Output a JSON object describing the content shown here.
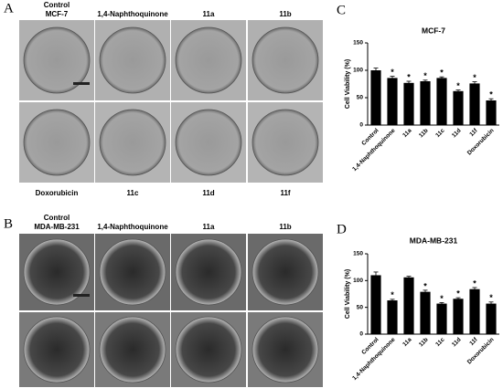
{
  "panels": {
    "A": {
      "letter": "A",
      "top_labels": [
        [
          "Control",
          "MCF-7"
        ],
        [
          "1,4-Naphthoquinone"
        ],
        [
          "11a"
        ],
        [
          "11b"
        ]
      ],
      "bottom_labels": [
        "Doxorubicin",
        "11c",
        "11d",
        "11f"
      ]
    },
    "B": {
      "letter": "B",
      "top_labels": [
        [
          "Control",
          "MDA-MB-231"
        ],
        [
          "1,4-Naphthoquinone"
        ],
        [
          "11a"
        ],
        [
          "11b"
        ]
      ]
    },
    "C": {
      "letter": "C"
    },
    "D": {
      "letter": "D"
    }
  },
  "chart_data": [
    {
      "type": "bar",
      "title": "MCF-7",
      "y_label": "Cell Viability (%)",
      "categories": [
        "Control",
        "1,4-Naphthoquinone",
        "11a",
        "11b",
        "11c",
        "11d",
        "11f",
        "Doxorubicin"
      ],
      "values": [
        100,
        86,
        77,
        80,
        86,
        62,
        76,
        45
      ],
      "errors": [
        4,
        3,
        3,
        2,
        2,
        2,
        3,
        3
      ],
      "markers": [
        null,
        "*",
        "*",
        "*",
        "*",
        "*",
        "*",
        "*"
      ],
      "color": "#000000",
      "ylim": [
        0,
        150
      ],
      "yticks": [
        0,
        50,
        100,
        150
      ]
    },
    {
      "type": "bar",
      "title": "MDA-MB-231",
      "y_label": "Cell Viability (%)",
      "categories": [
        "Control",
        "1,4-Naphthoquinone",
        "11a",
        "11b",
        "11c",
        "11d",
        "11f",
        "Doxorubicin"
      ],
      "values": [
        110,
        63,
        106,
        79,
        57,
        66,
        84,
        57
      ],
      "errors": [
        6,
        2,
        2,
        3,
        2,
        2,
        3,
        3
      ],
      "markers": [
        null,
        "*",
        null,
        "*",
        "*",
        "*",
        "*",
        "*"
      ],
      "color": "#000000",
      "ylim": [
        0,
        150
      ],
      "yticks": [
        0,
        50,
        100,
        150
      ]
    }
  ]
}
